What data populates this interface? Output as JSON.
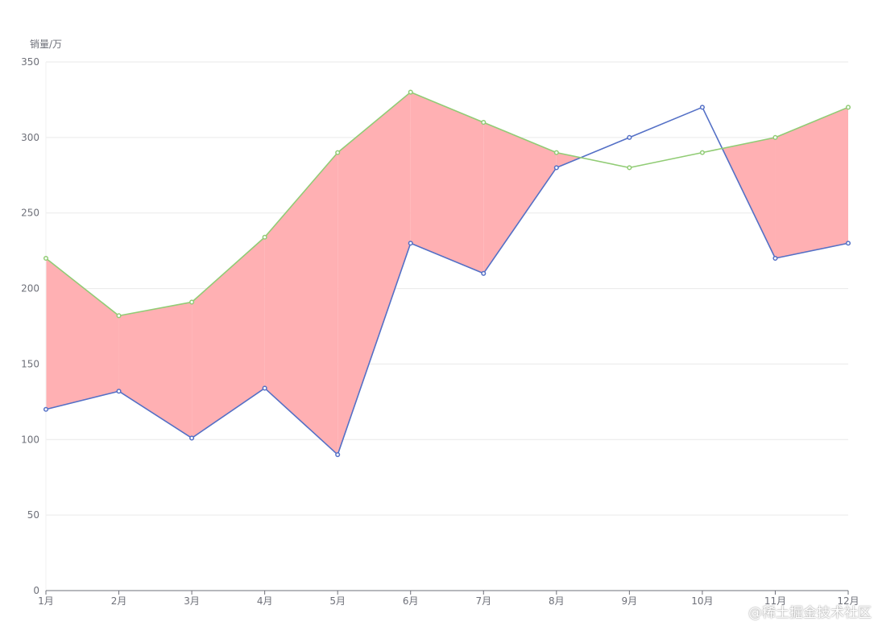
{
  "chart_data": {
    "type": "line",
    "ylabel": "销量/万",
    "ylim": [
      0,
      350
    ],
    "yticks": [
      0,
      50,
      100,
      150,
      200,
      250,
      300,
      350
    ],
    "categories": [
      "1月",
      "2月",
      "3月",
      "4月",
      "5月",
      "6月",
      "7月",
      "8月",
      "9月",
      "10月",
      "11月",
      "12月"
    ],
    "grid": true,
    "series": [
      {
        "values": [
          120,
          132,
          101,
          134,
          90,
          230,
          210,
          280,
          300,
          320,
          220,
          230
        ],
        "color": "#5470c6"
      },
      {
        "values": [
          220,
          182,
          191,
          234,
          290,
          330,
          310,
          290,
          280,
          290,
          300,
          320
        ],
        "color": "#91cc75"
      }
    ],
    "fill_between_color": "#ffb0b3",
    "overlap_line_color": "#7a5a9a"
  },
  "watermark": "@稀土掘金技术社区"
}
